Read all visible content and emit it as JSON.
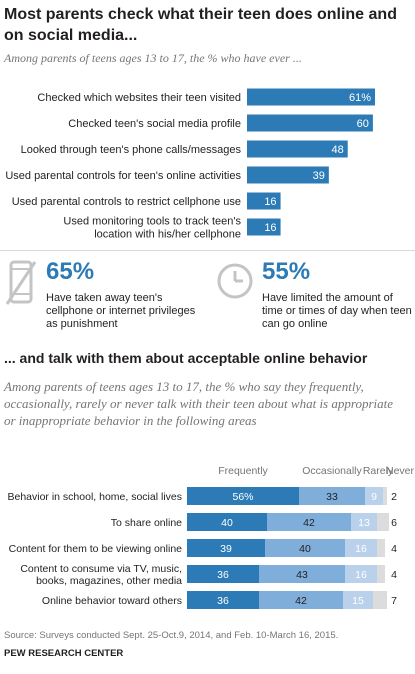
{
  "section1": {
    "title": "Most parents check what their teen does online and on social media...",
    "subtitle": "Among parents of teens ages 13 to 17, the % who have ever ..."
  },
  "stats": [
    {
      "value": "65%",
      "text": "Have taken away teen's cellphone or internet privileges as punishment",
      "icon": "no-phone-icon"
    },
    {
      "value": "55%",
      "text": "Have limited the amount of time or times of day when teen can go online",
      "icon": "clock-icon"
    }
  ],
  "section2": {
    "title": "... and talk with them about acceptable online behavior",
    "subtitle": "Among parents of teens ages 13 to 17, the % who say they frequently, occasionally, rarely or never talk with their teen about what is appropriate or inappropriate behavior in the following areas"
  },
  "footer": {
    "source": "Source: Surveys conducted Sept. 25-Oct.9, 2014, and Feb. 10-March 16, 2015.",
    "org": "PEW RESEARCH CENTER"
  },
  "colors": {
    "bar": "#2c7bb6",
    "frequently": "#2c7bb6",
    "occasionally": "#7faedb",
    "rarely": "#b9d1ea",
    "never": "#dcdcdc",
    "text": "#231f20",
    "muted": "#757575"
  },
  "chart_data": [
    {
      "type": "bar",
      "orientation": "horizontal",
      "categories": [
        "Checked which websites their teen visited",
        "Checked teen's social media profile",
        "Looked through teen's phone calls/messages",
        "Used parental controls for teen's online activities",
        "Used parental controls to restrict cellphone use",
        "Used monitoring tools to track teen's location with his/her cellphone"
      ],
      "values": [
        61,
        60,
        48,
        39,
        16,
        16
      ],
      "value_labels": [
        "61%",
        "60",
        "48",
        "39",
        "16",
        "16"
      ],
      "xlim": [
        0,
        100
      ]
    },
    {
      "type": "bar",
      "orientation": "horizontal",
      "stacked": true,
      "categories": [
        "Behavior in school, home, social lives",
        "To share online",
        "Content for them to be viewing online",
        "Content to consume via TV, music, books, magazines, other media",
        "Online behavior toward others"
      ],
      "series": [
        {
          "name": "Frequently",
          "values": [
            56,
            40,
            39,
            36,
            36
          ]
        },
        {
          "name": "Occasionally",
          "values": [
            33,
            42,
            40,
            43,
            42
          ]
        },
        {
          "name": "Rarely",
          "values": [
            9,
            13,
            16,
            16,
            15
          ]
        },
        {
          "name": "Never",
          "values": [
            2,
            6,
            4,
            4,
            7
          ]
        }
      ],
      "first_row_label_suffix": "%",
      "xlim": [
        0,
        100
      ]
    }
  ]
}
